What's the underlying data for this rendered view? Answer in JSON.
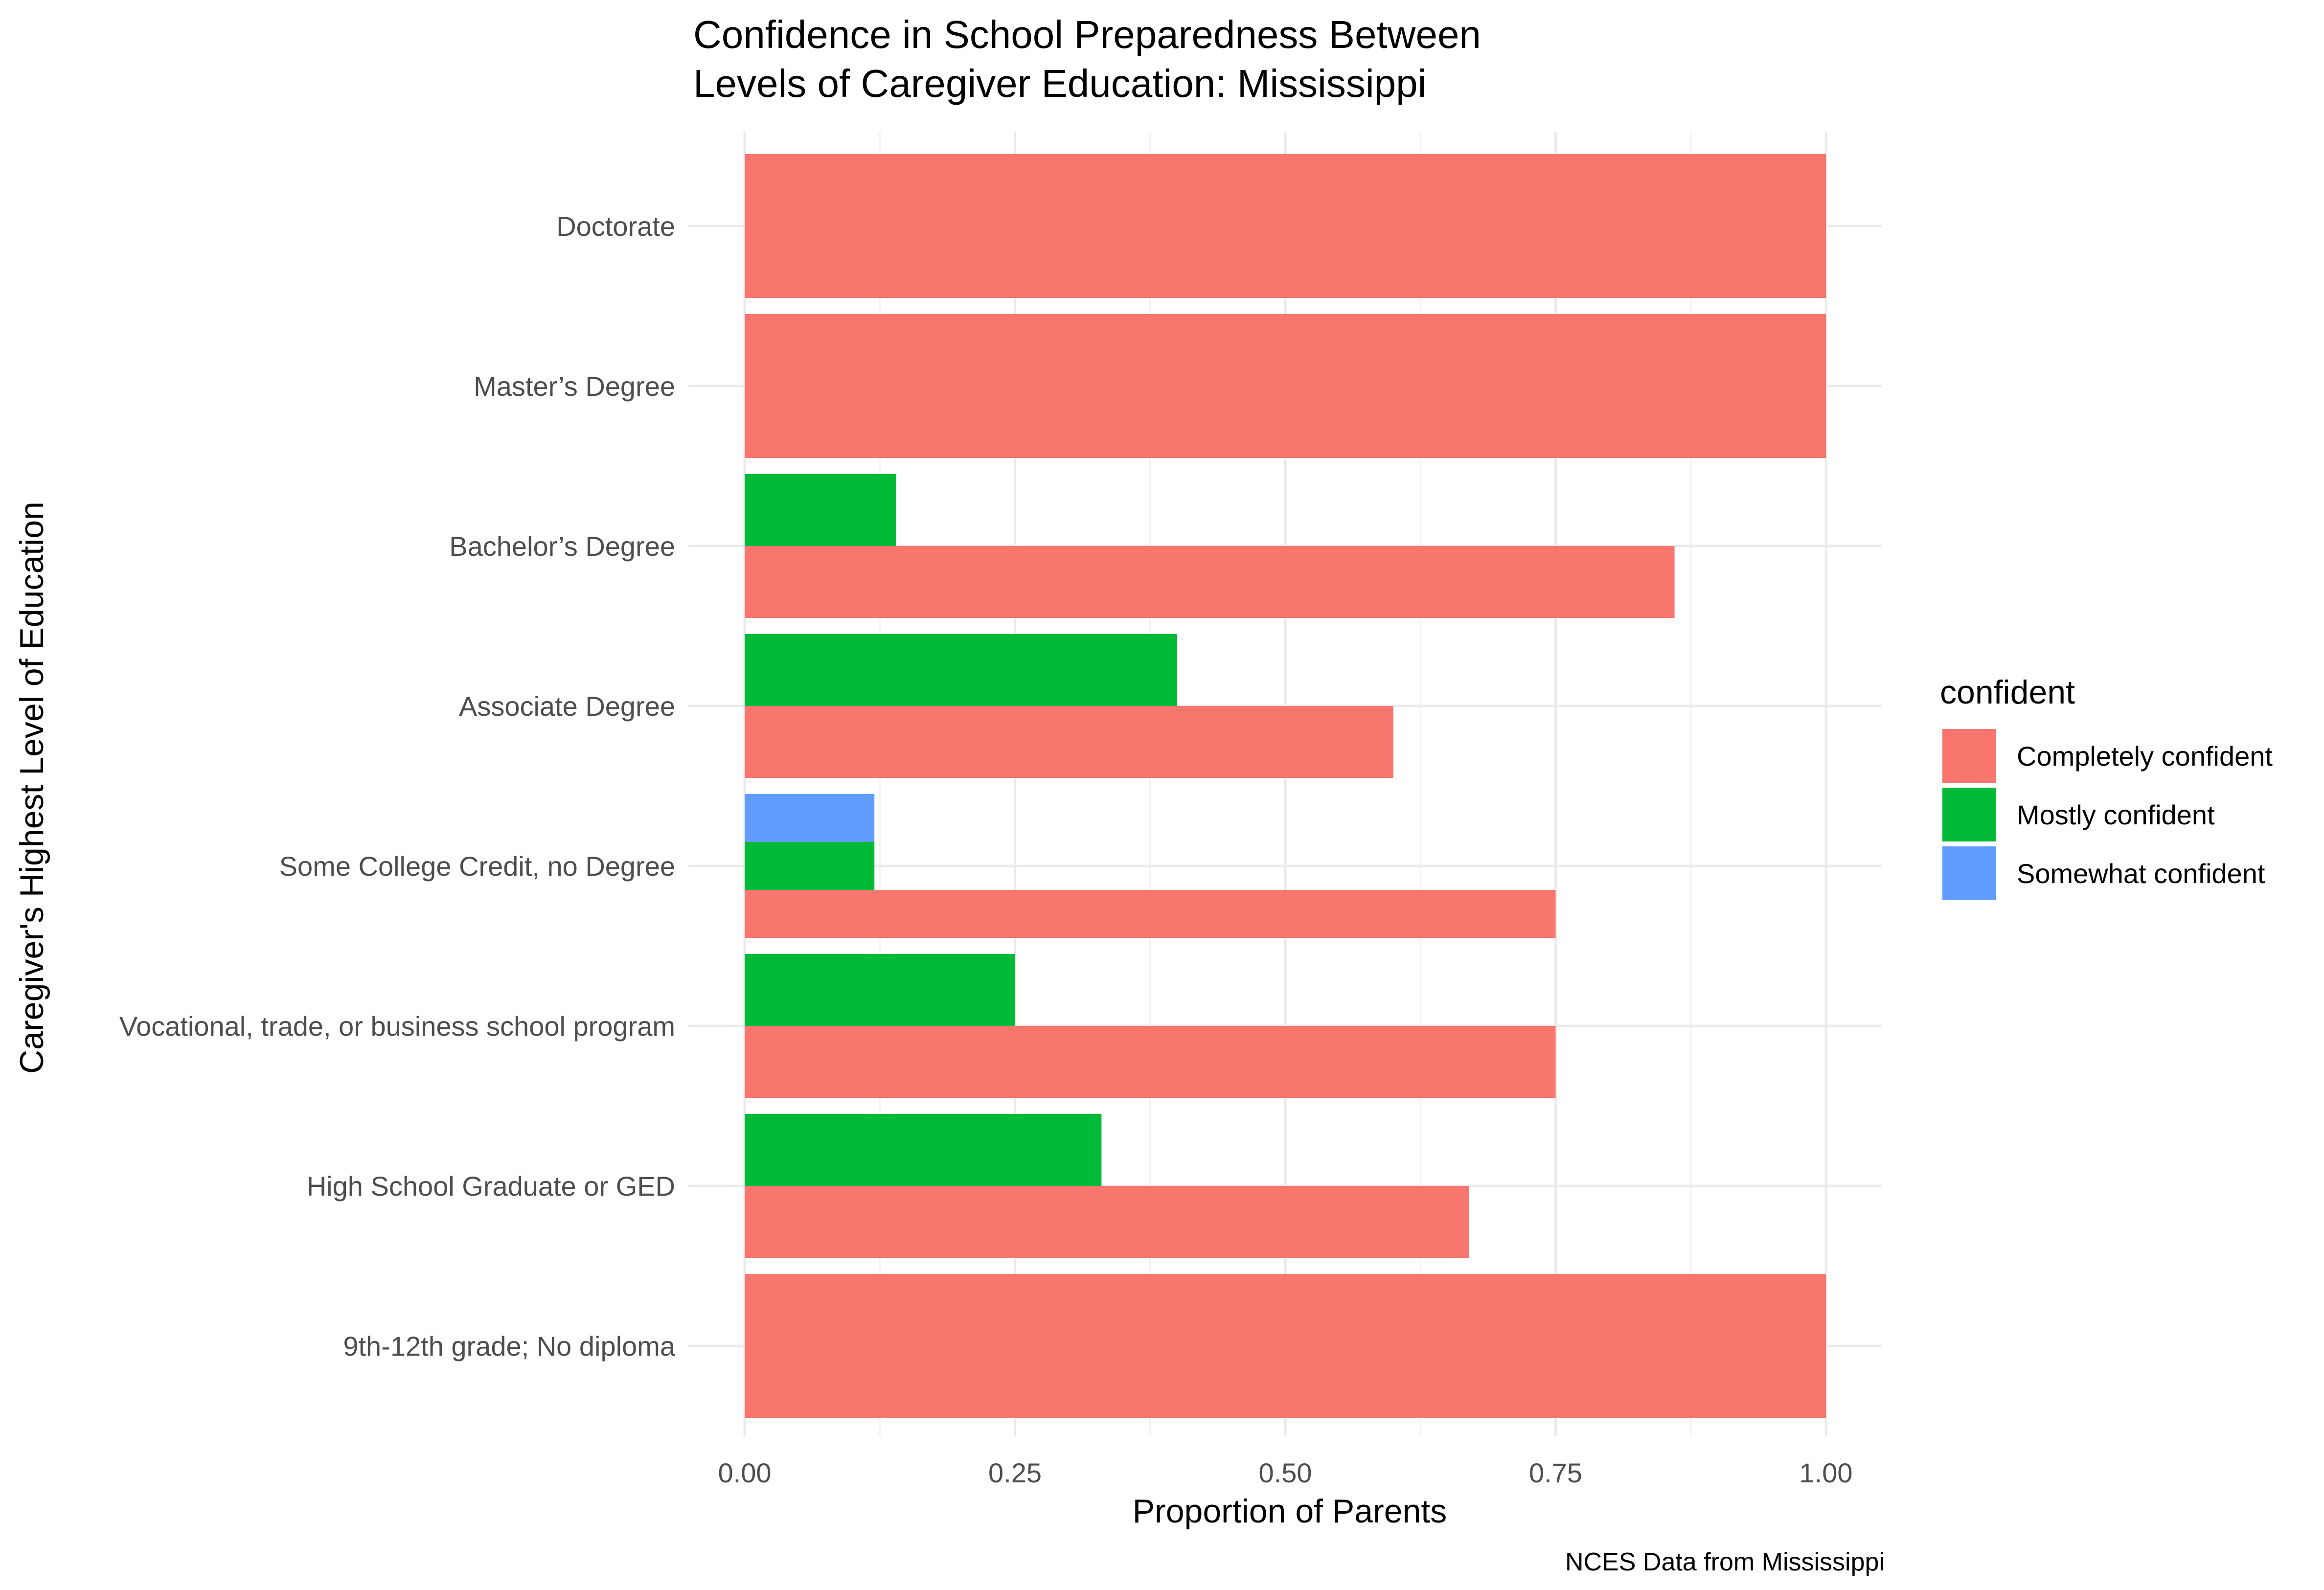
{
  "chart_data": {
    "type": "bar",
    "orientation": "horizontal",
    "grouping": "dodged",
    "title_lines": [
      "Confidence in School Preparedness Between",
      "Levels of Caregiver Education: Mississippi"
    ],
    "xlabel": "Proportion of Parents",
    "ylabel": "Caregiver's Highest Level of Education",
    "caption": "NCES Data from Mississippi",
    "xlim": [
      0,
      1
    ],
    "x_ticks": [
      "0.00",
      "0.25",
      "0.50",
      "0.75",
      "1.00"
    ],
    "x_tick_values": [
      0,
      0.25,
      0.5,
      0.75,
      1.0
    ],
    "grid": true,
    "legend": {
      "title": "confident",
      "position": "right",
      "entries": [
        {
          "label": "Completely confident",
          "color": "#F8766D"
        },
        {
          "label": "Mostly confident",
          "color": "#00BA38"
        },
        {
          "label": "Somewhat confident",
          "color": "#619CFF"
        }
      ]
    },
    "categories": [
      "Doctorate",
      "Master’s Degree",
      "Bachelor’s Degree",
      "Associate Degree",
      "Some College Credit, no Degree",
      "Vocational, trade, or business school program",
      "High School Graduate or GED",
      "9th-12th grade; No diploma"
    ],
    "series": [
      {
        "name": "Completely confident",
        "color": "#F8766D",
        "values": [
          1.0,
          1.0,
          0.86,
          0.6,
          0.75,
          0.75,
          0.67,
          1.0
        ]
      },
      {
        "name": "Mostly confident",
        "color": "#00BA38",
        "values": [
          null,
          null,
          0.14,
          0.4,
          0.12,
          0.25,
          0.33,
          null
        ]
      },
      {
        "name": "Somewhat confident",
        "color": "#619CFF",
        "values": [
          null,
          null,
          null,
          null,
          0.12,
          null,
          null,
          null
        ]
      }
    ]
  }
}
